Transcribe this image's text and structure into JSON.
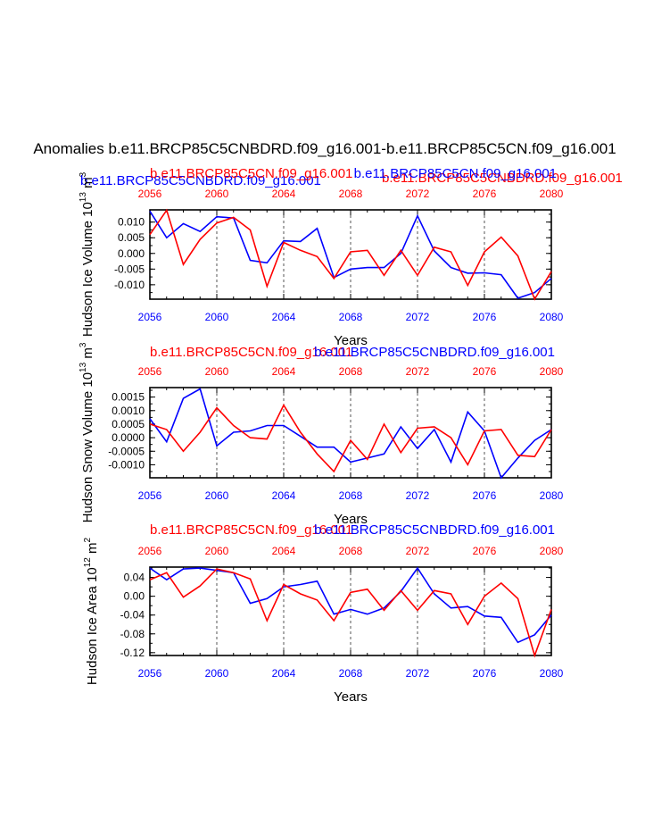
{
  "colors": {
    "blue": "#0000ff",
    "red": "#ff0000",
    "axis": "#000000"
  },
  "figure_title": "Anomalies b.e11.BRCP85C5CNBDRD.f09_g16.001-b.e11.BRCP85C5CN.f09_g16.001",
  "chart_data": [
    {
      "type": "line",
      "ylabel": "Hudson Ice Volume 10",
      "ylabel_exp": "13",
      "ylabel_units": " m",
      "ylabel_units_exp": "3",
      "xlabel": "Years",
      "top_labels": [
        "b.e11.BRCP85C5CNBDRD.f09_g16.001",
        "b.e11.BRCP85C5CN.f09_g16.001",
        "b.e11.BRCP85C5CNBDRD.f09_g16.001",
        "b.e11.BRCP85C5CN.f09_g16.001"
      ],
      "xlim": [
        2056,
        2080
      ],
      "ylim": [
        -0.0146,
        0.0139
      ],
      "yticks": [
        0.01,
        0.005,
        0.0,
        -0.005,
        -0.01
      ],
      "ytick_labels": [
        "0.010",
        "0.005",
        "0.000",
        "-0.005",
        "-0.010"
      ],
      "xticks": [
        2056,
        2060,
        2064,
        2068,
        2072,
        2076,
        2080
      ],
      "x": [
        2056,
        2057,
        2058,
        2059,
        2060,
        2061,
        2062,
        2063,
        2064,
        2065,
        2066,
        2067,
        2068,
        2069,
        2070,
        2071,
        2072,
        2073,
        2074,
        2075,
        2076,
        2077,
        2078,
        2079,
        2080
      ],
      "series": [
        {
          "name": "b.e11.BRCP85C5CNBDRD.f09_g16.001",
          "color": "blue",
          "values": [
            0.0135,
            0.005,
            0.0095,
            0.007,
            0.0117,
            0.0113,
            -0.0022,
            -0.003,
            0.004,
            0.0038,
            0.008,
            -0.0077,
            -0.005,
            -0.0045,
            -0.0045,
            0.0,
            0.012,
            0.0008,
            -0.0045,
            -0.0063,
            -0.0062,
            -0.0068,
            -0.0143,
            -0.0125,
            -0.008
          ]
        },
        {
          "name": "b.e11.BRCP85C5CN.f09_g16.001",
          "color": "red",
          "values": [
            0.006,
            0.0138,
            -0.0035,
            0.0045,
            0.0097,
            0.0115,
            0.0075,
            -0.0105,
            0.0035,
            0.001,
            -0.001,
            -0.008,
            0.0005,
            0.001,
            -0.007,
            0.001,
            -0.007,
            0.002,
            0.0005,
            -0.0102,
            0.0005,
            0.0052,
            -0.0008,
            -0.0146,
            -0.0058
          ]
        }
      ]
    },
    {
      "type": "line",
      "ylabel": "Hudson Snow Volume 10",
      "ylabel_exp": "13",
      "ylabel_units": " m",
      "ylabel_units_exp": "3",
      "xlabel": "Years",
      "top_labels": [
        "b.e11.BRCP85C5CN.f09_g16.001",
        "b.e11.BRCP85C5CNBDRD.f09_g16.001"
      ],
      "xlim": [
        2056,
        2080
      ],
      "ylim": [
        -0.00148,
        0.00185
      ],
      "yticks": [
        0.0015,
        0.001,
        0.0005,
        0.0,
        -0.0005,
        -0.001
      ],
      "ytick_labels": [
        "0.0015",
        "0.0010",
        "0.0005",
        "0.0000",
        "-0.0005",
        "-0.0010"
      ],
      "xticks": [
        2056,
        2060,
        2064,
        2068,
        2072,
        2076,
        2080
      ],
      "x": [
        2056,
        2057,
        2058,
        2059,
        2060,
        2061,
        2062,
        2063,
        2064,
        2065,
        2066,
        2067,
        2068,
        2069,
        2070,
        2071,
        2072,
        2073,
        2074,
        2075,
        2076,
        2077,
        2078,
        2079,
        2080
      ],
      "series": [
        {
          "name": "b.e11.BRCP85C5CNBDRD.f09_g16.001",
          "color": "blue",
          "values": [
            0.0007,
            -0.00015,
            0.00145,
            0.0018,
            -0.0003,
            0.0002,
            0.00025,
            0.00045,
            0.00045,
            5e-05,
            -0.00035,
            -0.00035,
            -0.0009,
            -0.00075,
            -0.0006,
            0.0004,
            -0.0004,
            0.0003,
            -0.0009,
            0.00095,
            0.00025,
            -0.00148,
            -0.00075,
            -0.0001,
            0.0003
          ]
        },
        {
          "name": "b.e11.BRCP85C5CN.f09_g16.001",
          "color": "red",
          "values": [
            0.0005,
            0.0003,
            -0.0005,
            0.0002,
            0.0011,
            0.00045,
            0.0,
            -5e-05,
            0.0012,
            0.0002,
            -0.0006,
            -0.00125,
            -0.0001,
            -0.0008,
            0.0005,
            -0.00055,
            0.00035,
            0.0004,
            0.0,
            -0.001,
            0.00025,
            0.0003,
            -0.00065,
            -0.0007,
            0.0003
          ]
        }
      ]
    },
    {
      "type": "line",
      "ylabel": "Hudson Ice Area 10",
      "ylabel_exp": "12",
      "ylabel_units": " m",
      "ylabel_units_exp": "2",
      "xlabel": "Years",
      "top_labels": [
        "b.e11.BRCP85C5CN.f09_g16.001",
        "b.e11.BRCP85C5CNBDRD.f09_g16.001"
      ],
      "xlim": [
        2056,
        2080
      ],
      "ylim": [
        -0.126,
        0.062
      ],
      "yticks": [
        0.04,
        0.0,
        -0.04,
        -0.08,
        -0.12
      ],
      "ytick_labels": [
        "0.04",
        "0.00",
        "-0.04",
        "-0.08",
        "-0.12"
      ],
      "extra_tick_labels": [
        "0.04",
        "-0.04",
        "-0.08",
        "-0.12"
      ],
      "xticks": [
        2056,
        2060,
        2064,
        2068,
        2072,
        2076,
        2080
      ],
      "x": [
        2056,
        2057,
        2058,
        2059,
        2060,
        2061,
        2062,
        2063,
        2064,
        2065,
        2066,
        2067,
        2068,
        2069,
        2070,
        2071,
        2072,
        2073,
        2074,
        2075,
        2076,
        2077,
        2078,
        2079,
        2080
      ],
      "series": [
        {
          "name": "b.e11.BRCP85C5CNBDRD.f09_g16.001",
          "color": "blue",
          "values": [
            0.06,
            0.035,
            0.058,
            0.06,
            0.055,
            0.05,
            -0.015,
            -0.005,
            0.02,
            0.025,
            0.032,
            -0.038,
            -0.028,
            -0.038,
            -0.025,
            0.01,
            0.06,
            0.005,
            -0.025,
            -0.022,
            -0.042,
            -0.045,
            -0.098,
            -0.082,
            -0.04
          ]
        },
        {
          "name": "b.e11.BRCP85C5CN.f09_g16.001",
          "color": "red",
          "values": [
            0.035,
            0.05,
            -0.002,
            0.022,
            0.058,
            0.05,
            0.037,
            -0.052,
            0.025,
            0.005,
            -0.008,
            -0.052,
            0.008,
            0.015,
            -0.03,
            0.012,
            -0.03,
            0.012,
            0.005,
            -0.06,
            0.0,
            0.028,
            -0.005,
            -0.126,
            -0.028
          ]
        }
      ]
    }
  ]
}
